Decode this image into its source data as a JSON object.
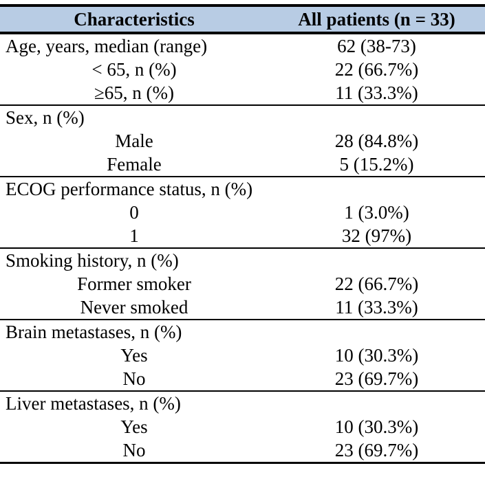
{
  "colors": {
    "header_bg": "#b8cce4",
    "border": "#000000",
    "text": "#000000",
    "background": "#ffffff"
  },
  "table": {
    "header": {
      "col1": "Characteristics",
      "col2": "All patients (n = 33)"
    },
    "sections": [
      {
        "rows": [
          {
            "label": "Age, years, median (range)",
            "align": "left",
            "value": "62 (38-73)"
          },
          {
            "label": "< 65, n (%)",
            "align": "center",
            "value": "22 (66.7%)"
          },
          {
            "label": "≥65, n (%)",
            "align": "center",
            "value": "11 (33.3%)"
          }
        ]
      },
      {
        "rows": [
          {
            "label": "Sex, n (%)",
            "align": "left",
            "value": ""
          },
          {
            "label": "Male",
            "align": "center",
            "value": "28 (84.8%)"
          },
          {
            "label": "Female",
            "align": "center",
            "value": "5 (15.2%)"
          }
        ]
      },
      {
        "rows": [
          {
            "label": "ECOG performance status, n (%)",
            "align": "left",
            "value": ""
          },
          {
            "label": "0",
            "align": "center",
            "value": "1 (3.0%)"
          },
          {
            "label": "1",
            "align": "center",
            "value": "32 (97%)"
          }
        ]
      },
      {
        "rows": [
          {
            "label": "Smoking history, n (%)",
            "align": "left",
            "value": ""
          },
          {
            "label": "Former smoker",
            "align": "center",
            "value": "22 (66.7%)"
          },
          {
            "label": "Never smoked",
            "align": "center",
            "value": "11 (33.3%)"
          }
        ]
      },
      {
        "rows": [
          {
            "label": "Brain metastases, n (%)",
            "align": "left",
            "value": ""
          },
          {
            "label": "Yes",
            "align": "center",
            "value": "10 (30.3%)"
          },
          {
            "label": "No",
            "align": "center",
            "value": "23 (69.7%)"
          }
        ]
      },
      {
        "rows": [
          {
            "label": "Liver metastases, n (%)",
            "align": "left",
            "value": ""
          },
          {
            "label": "Yes",
            "align": "center",
            "value": "10 (30.3%)"
          },
          {
            "label": "No",
            "align": "center",
            "value": "23 (69.7%)"
          }
        ]
      }
    ]
  }
}
